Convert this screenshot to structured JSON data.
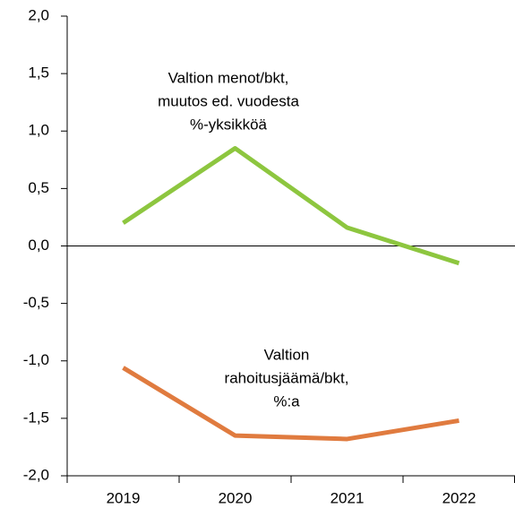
{
  "chart_data": {
    "type": "line",
    "categories": [
      "2019",
      "2020",
      "2021",
      "2022"
    ],
    "series": [
      {
        "color": "#8dc63f",
        "values": [
          0.2,
          0.85,
          0.16,
          -0.15
        ]
      },
      {
        "color": "#e07b3f",
        "values": [
          -1.06,
          -1.65,
          -1.68,
          -1.52
        ]
      }
    ],
    "annotations": [
      {
        "lines": [
          "Valtion menot/bkt,",
          "muutos ed. vuodesta",
          "%-yksikköä"
        ]
      },
      {
        "lines": [
          "Valtion",
          "rahoitusjäämä/bkt,",
          "%:a"
        ]
      }
    ],
    "ylim": [
      -2,
      2
    ],
    "yticks": [
      {
        "value": -2,
        "label": "-2,0"
      },
      {
        "value": -1.5,
        "label": "-1,5"
      },
      {
        "value": -1,
        "label": "-1,0"
      },
      {
        "value": -0.5,
        "label": "-0,5"
      },
      {
        "value": 0,
        "label": "0,0"
      },
      {
        "value": 0.5,
        "label": "0,5"
      },
      {
        "value": 1,
        "label": "1,0"
      },
      {
        "value": 1.5,
        "label": "1,5"
      },
      {
        "value": 2,
        "label": "2,0"
      }
    ]
  }
}
